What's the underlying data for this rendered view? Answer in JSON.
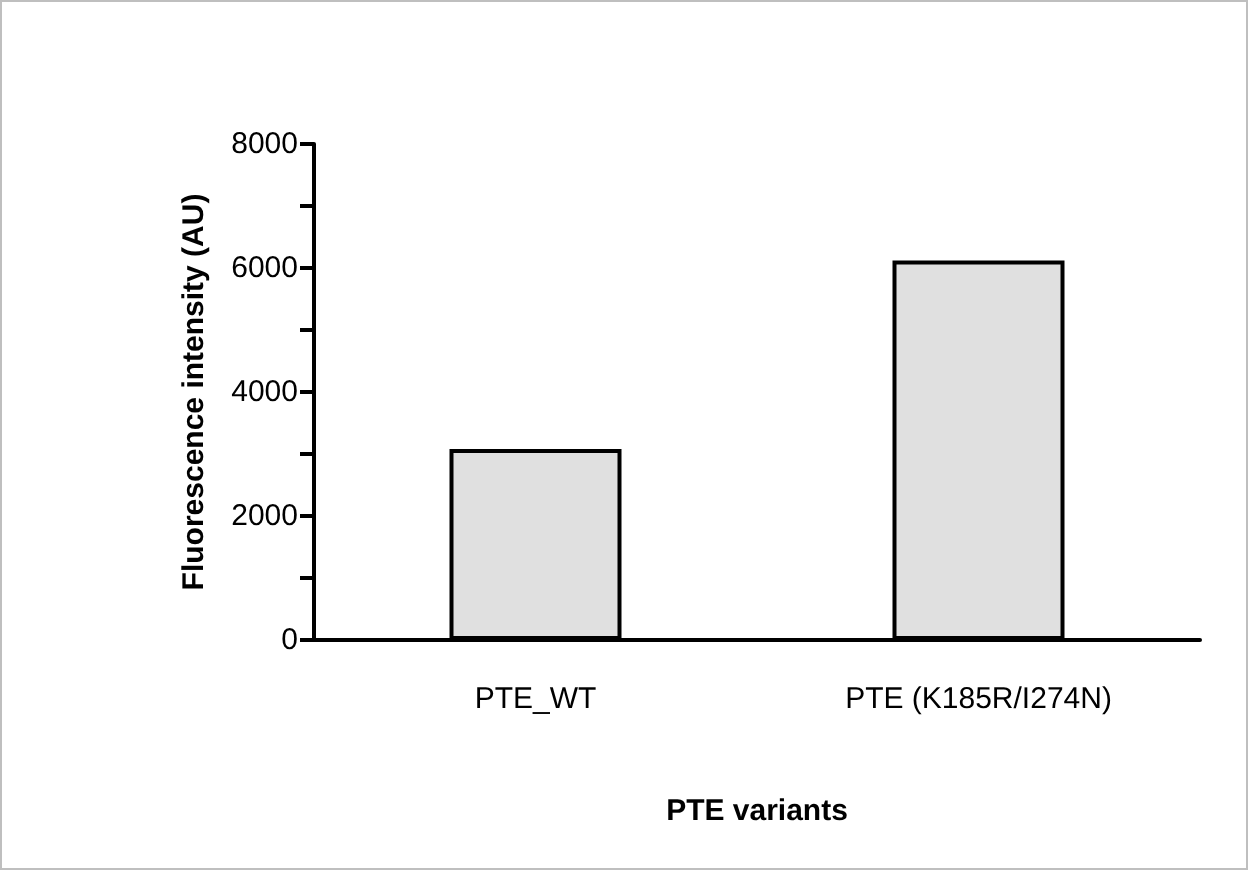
{
  "chart_data": {
    "type": "bar",
    "xlabel": "PTE variants",
    "ylabel": "Fluorescence intensity (AU)",
    "categories": [
      "PTE_WT",
      "PTE (K185R/I274N)"
    ],
    "series": [
      {
        "color": "#e0e0e0",
        "values": [
          3080,
          6120
        ]
      }
    ],
    "ylim": [
      0,
      8000
    ],
    "yticks": [
      0,
      {
        "value": 1000,
        "label": null
      },
      2000,
      {
        "value": 3000,
        "label": null
      },
      4000,
      {
        "value": 5000,
        "label": null
      },
      6000,
      {
        "value": 7000,
        "label": null
      },
      8000
    ],
    "grid": false
  }
}
